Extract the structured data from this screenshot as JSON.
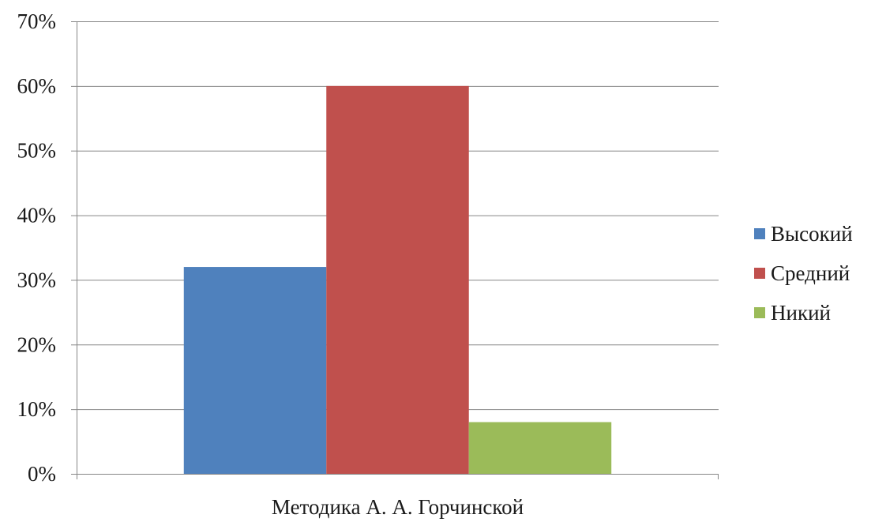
{
  "chart_data": {
    "type": "bar",
    "categories": [
      "Методика А. А. Горчинской"
    ],
    "series": [
      {
        "name": "Высокий",
        "values": [
          32
        ],
        "color": "#4f81bd"
      },
      {
        "name": "Средний",
        "values": [
          60
        ],
        "color": "#c0504d"
      },
      {
        "name": "Никий",
        "values": [
          8
        ],
        "color": "#9bbb59"
      }
    ],
    "y_unit": "%",
    "ylim": [
      0,
      70
    ],
    "yticks": [
      0,
      10,
      20,
      30,
      40,
      50,
      60,
      70
    ],
    "ytick_labels": [
      "0%",
      "10%",
      "20%",
      "30%",
      "40%",
      "50%",
      "60%",
      "70%"
    ],
    "grid": true,
    "grid_color": "#868686",
    "legend_position": "right"
  }
}
